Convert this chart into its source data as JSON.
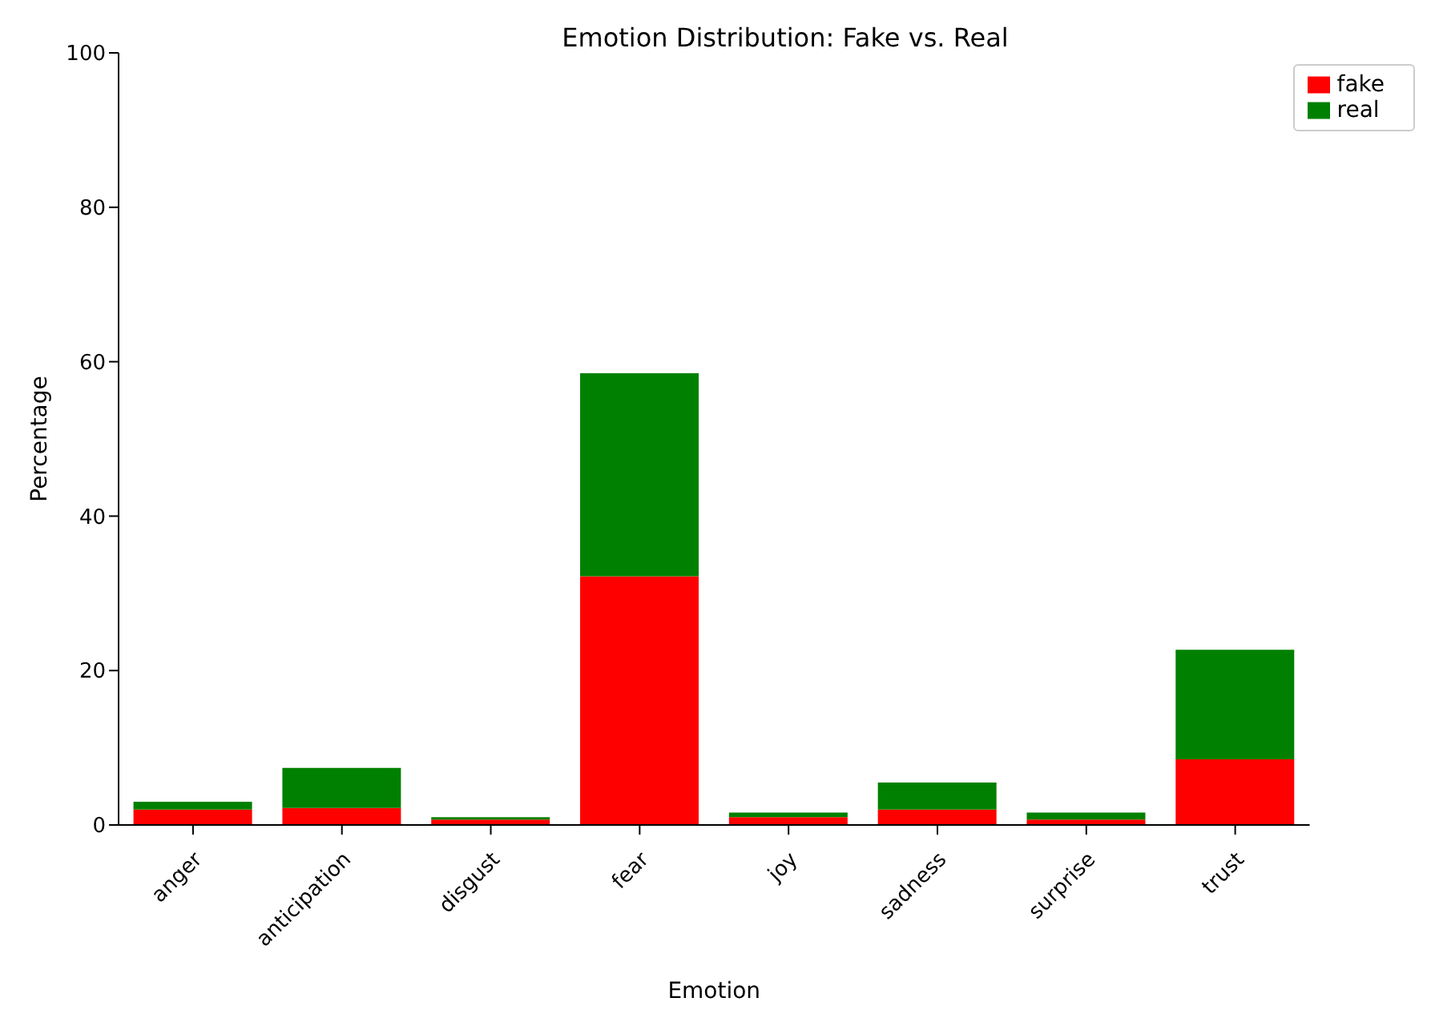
{
  "chart_data": {
    "type": "bar",
    "title": "Emotion Distribution: Fake vs. Real",
    "xlabel": "Emotion",
    "ylabel": "Percentage",
    "categories": [
      "anger",
      "anticipation",
      "disgust",
      "fear",
      "joy",
      "sadness",
      "surprise",
      "trust"
    ],
    "series": [
      {
        "name": "fake",
        "color": "#ff0000",
        "values": [
          2.0,
          2.2,
          0.7,
          32.2,
          1.0,
          2.0,
          0.7,
          8.5
        ]
      },
      {
        "name": "real",
        "color": "#008000",
        "values": [
          1.0,
          5.2,
          0.3,
          26.3,
          0.6,
          3.5,
          0.9,
          14.2
        ]
      }
    ],
    "stacked": true,
    "ylim": [
      0,
      100
    ],
    "yticks": [
      0,
      20,
      40,
      60,
      80,
      100
    ],
    "legend": "top right",
    "grid": false
  }
}
